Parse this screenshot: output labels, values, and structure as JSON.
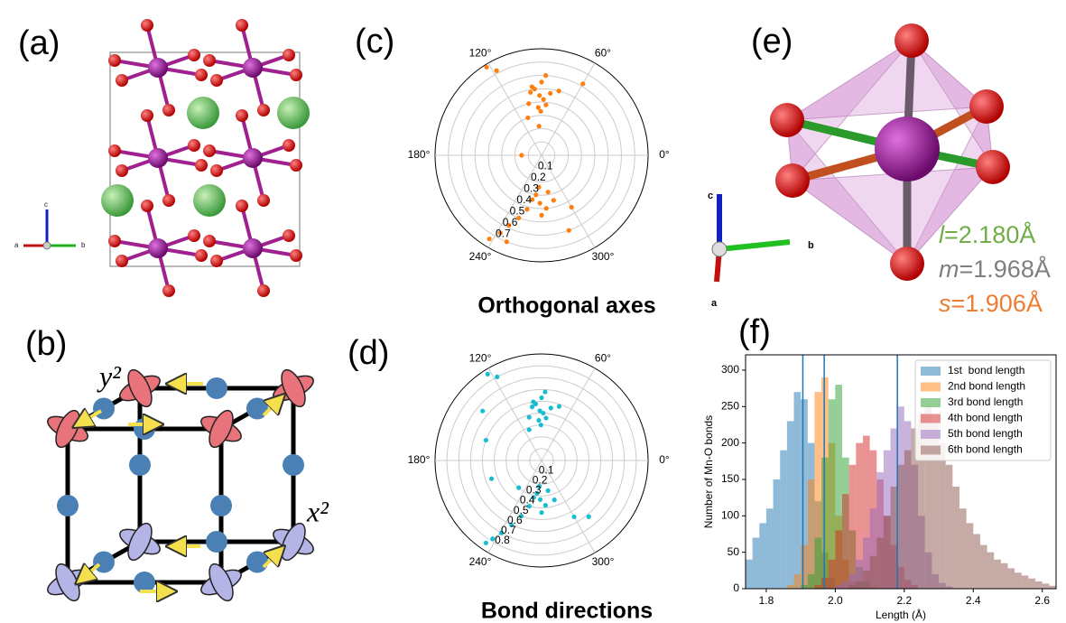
{
  "panel_labels": [
    "(a)",
    "(b)",
    "(c)",
    "(d)",
    "(e)",
    "(f)"
  ],
  "axes_a": [
    "c",
    "a",
    "b"
  ],
  "orbitals": [
    "y²",
    "x²"
  ],
  "axes_e": [
    "c",
    "b",
    "a"
  ],
  "bond_lengths": [
    {
      "symbol": "l",
      "text": "=2.180Å",
      "color": "#70ad47"
    },
    {
      "symbol": "m",
      "text": "=1.968Å",
      "color": "#7f7f7f"
    },
    {
      "symbol": "s",
      "text": "=1.906Å",
      "color": "#ed7d31"
    }
  ],
  "chart_data": [
    {
      "type": "polar",
      "title": "Orthogonal axes",
      "color": "#ff7f0e",
      "rlim": [
        0,
        0.8
      ],
      "rticks": [
        0.1,
        0.2,
        0.3,
        0.4,
        0.5,
        0.6,
        0.7
      ],
      "thetaticks": [
        {
          "value": 0,
          "label": "0°"
        },
        {
          "value": 60,
          "label": "60°"
        },
        {
          "value": 120,
          "label": "120°"
        },
        {
          "value": 180,
          "label": "180°"
        },
        {
          "value": 240,
          "label": "240°"
        },
        {
          "value": 300,
          "label": "300°"
        }
      ],
      "theta": [
        92,
        88,
        96,
        85,
        100,
        90,
        94,
        82,
        104,
        98,
        91,
        87,
        110,
        75,
        60,
        118,
        122,
        268,
        262,
        275,
        258,
        280,
        270,
        255,
        265,
        285,
        250,
        245,
        242,
        238,
        248,
        300,
        95,
        180,
        290
      ],
      "r": [
        0.45,
        0.42,
        0.5,
        0.38,
        0.48,
        0.55,
        0.36,
        0.47,
        0.4,
        0.52,
        0.33,
        0.6,
        0.3,
        0.5,
        0.62,
        0.72,
        0.78,
        0.36,
        0.3,
        0.4,
        0.34,
        0.28,
        0.45,
        0.42,
        0.24,
        0.35,
        0.5,
        0.58,
        0.66,
        0.74,
        0.7,
        0.45,
        0.22,
        0.15,
        0.6
      ]
    },
    {
      "type": "polar",
      "title": "Bond directions",
      "color": "#17becf",
      "rlim": [
        0,
        0.9
      ],
      "rticks": [
        0.1,
        0.2,
        0.3,
        0.4,
        0.5,
        0.6,
        0.7,
        0.8
      ],
      "thetaticks": [
        {
          "value": 0,
          "label": "0°"
        },
        {
          "value": 60,
          "label": "60°"
        },
        {
          "value": 120,
          "label": "120°"
        },
        {
          "value": 180,
          "label": "180°"
        },
        {
          "value": 240,
          "label": "240°"
        },
        {
          "value": 300,
          "label": "300°"
        }
      ],
      "theta": [
        92,
        88,
        96,
        84,
        100,
        90,
        94,
        80,
        106,
        98,
        91,
        87,
        112,
        72,
        118,
        122,
        268,
        262,
        275,
        258,
        282,
        270,
        255,
        265,
        288,
        250,
        245,
        241,
        238,
        236,
        300,
        310,
        200,
        160,
        140,
        230
      ],
      "r": [
        0.42,
        0.4,
        0.48,
        0.36,
        0.46,
        0.53,
        0.34,
        0.45,
        0.38,
        0.5,
        0.3,
        0.58,
        0.28,
        0.48,
        0.8,
        0.86,
        0.33,
        0.28,
        0.38,
        0.32,
        0.26,
        0.44,
        0.4,
        0.22,
        0.35,
        0.5,
        0.6,
        0.7,
        0.78,
        0.84,
        0.55,
        0.62,
        0.45,
        0.5,
        0.65,
        0.3
      ]
    },
    {
      "type": "histogram",
      "xlabel": "Length (Å)",
      "ylabel": "Number of Mn-O bonds",
      "xlim": [
        1.74,
        2.64
      ],
      "ylim": [
        0,
        321
      ],
      "xticks": [
        1.8,
        {
          "value": 2,
          "label": "2.0"
        },
        2.2,
        2.4,
        2.6
      ],
      "yticks": [
        0,
        50,
        100,
        150,
        200,
        250,
        300
      ],
      "legend": "upper right",
      "vlines": [
        1.906,
        1.968,
        2.18
      ],
      "vline_color": "#1f77b4",
      "bins": [
        1.74,
        1.76,
        1.78,
        1.8,
        1.82,
        1.84,
        1.86,
        1.88,
        1.9,
        1.92,
        1.94,
        1.96,
        1.98,
        2,
        2.02,
        2.04,
        2.06,
        2.08,
        2.1,
        2.12,
        2.14,
        2.16,
        2.18,
        2.2,
        2.22,
        2.24,
        2.26,
        2.28,
        2.3,
        2.32,
        2.34,
        2.36,
        2.38,
        2.4,
        2.42,
        2.44,
        2.46,
        2.48,
        2.5,
        2.52,
        2.54,
        2.56,
        2.58,
        2.6,
        2.62,
        2.64
      ],
      "series": [
        {
          "name": "1st  bond length",
          "color": "#1f77b4",
          "values": [
            40,
            70,
            90,
            110,
            150,
            190,
            230,
            270,
            260,
            200,
            120,
            50,
            15,
            3,
            0,
            0,
            0,
            0,
            0,
            0,
            0,
            0,
            0,
            0,
            0,
            0,
            0,
            0,
            0,
            0,
            0,
            0,
            0,
            0,
            0,
            0,
            0,
            0,
            0,
            0,
            0,
            0,
            0,
            0,
            0
          ]
        },
        {
          "name": "2nd bond length",
          "color": "#ff7f0e",
          "values": [
            0,
            0,
            0,
            0,
            0,
            0,
            5,
            20,
            60,
            150,
            270,
            290,
            200,
            100,
            40,
            10,
            2,
            0,
            0,
            0,
            0,
            0,
            0,
            0,
            0,
            0,
            0,
            0,
            0,
            0,
            0,
            0,
            0,
            0,
            0,
            0,
            0,
            0,
            0,
            0,
            0,
            0,
            0,
            0,
            0
          ]
        },
        {
          "name": "3rd bond length",
          "color": "#2ca02c",
          "values": [
            0,
            0,
            0,
            0,
            0,
            0,
            0,
            0,
            5,
            20,
            70,
            180,
            260,
            280,
            180,
            80,
            30,
            10,
            3,
            0,
            0,
            0,
            0,
            0,
            0,
            0,
            0,
            0,
            0,
            0,
            0,
            0,
            0,
            0,
            0,
            0,
            0,
            0,
            0,
            0,
            0,
            0,
            0,
            0,
            0
          ]
        },
        {
          "name": "4th bond length",
          "color": "#d62728",
          "values": [
            0,
            0,
            0,
            0,
            0,
            0,
            0,
            0,
            0,
            0,
            5,
            15,
            40,
            80,
            130,
            170,
            200,
            210,
            190,
            150,
            100,
            60,
            30,
            12,
            5,
            0,
            0,
            0,
            0,
            0,
            0,
            0,
            0,
            0,
            0,
            0,
            0,
            0,
            0,
            0,
            0,
            0,
            0,
            0,
            0
          ]
        },
        {
          "name": "5th bond length",
          "color": "#9467bd",
          "values": [
            0,
            0,
            0,
            0,
            0,
            0,
            0,
            0,
            0,
            0,
            0,
            0,
            0,
            5,
            10,
            20,
            40,
            70,
            110,
            160,
            190,
            220,
            250,
            230,
            170,
            100,
            50,
            20,
            8,
            3,
            0,
            0,
            0,
            0,
            0,
            0,
            0,
            0,
            0,
            0,
            0,
            0,
            0,
            0,
            0
          ]
        },
        {
          "name": "6th bond length",
          "color": "#8c564b",
          "values": [
            0,
            0,
            0,
            0,
            0,
            0,
            0,
            0,
            0,
            0,
            0,
            0,
            0,
            0,
            0,
            5,
            10,
            25,
            45,
            70,
            100,
            140,
            170,
            190,
            220,
            240,
            250,
            230,
            200,
            170,
            140,
            110,
            90,
            75,
            60,
            50,
            40,
            35,
            28,
            22,
            18,
            14,
            10,
            7,
            4
          ]
        }
      ]
    }
  ]
}
